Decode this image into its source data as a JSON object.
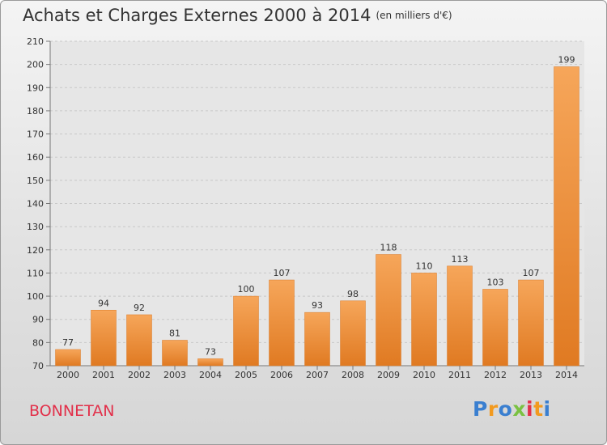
{
  "title": "Achats et Charges Externes 2000 à 2014",
  "unit": "(en milliers d'€)",
  "commune": "BONNETAN",
  "logo_text": "Proxiti",
  "colors": {
    "bar_light": "#f6a65a",
    "bar_dark": "#e07a22",
    "commune": "#e2304a"
  },
  "chart_data": {
    "type": "bar",
    "categories": [
      "2000",
      "2001",
      "2002",
      "2003",
      "2004",
      "2005",
      "2006",
      "2007",
      "2008",
      "2009",
      "2010",
      "2011",
      "2012",
      "2013",
      "2014"
    ],
    "values": [
      77,
      94,
      92,
      81,
      73,
      100,
      107,
      93,
      98,
      118,
      110,
      113,
      103,
      107,
      199
    ],
    "ylim": [
      70,
      210
    ],
    "yticks": [
      70,
      80,
      90,
      100,
      110,
      120,
      130,
      140,
      150,
      160,
      170,
      180,
      190,
      200,
      210
    ],
    "grid": true,
    "title": "Achats et Charges Externes 2000 à 2014",
    "xlabel": "",
    "ylabel": ""
  }
}
